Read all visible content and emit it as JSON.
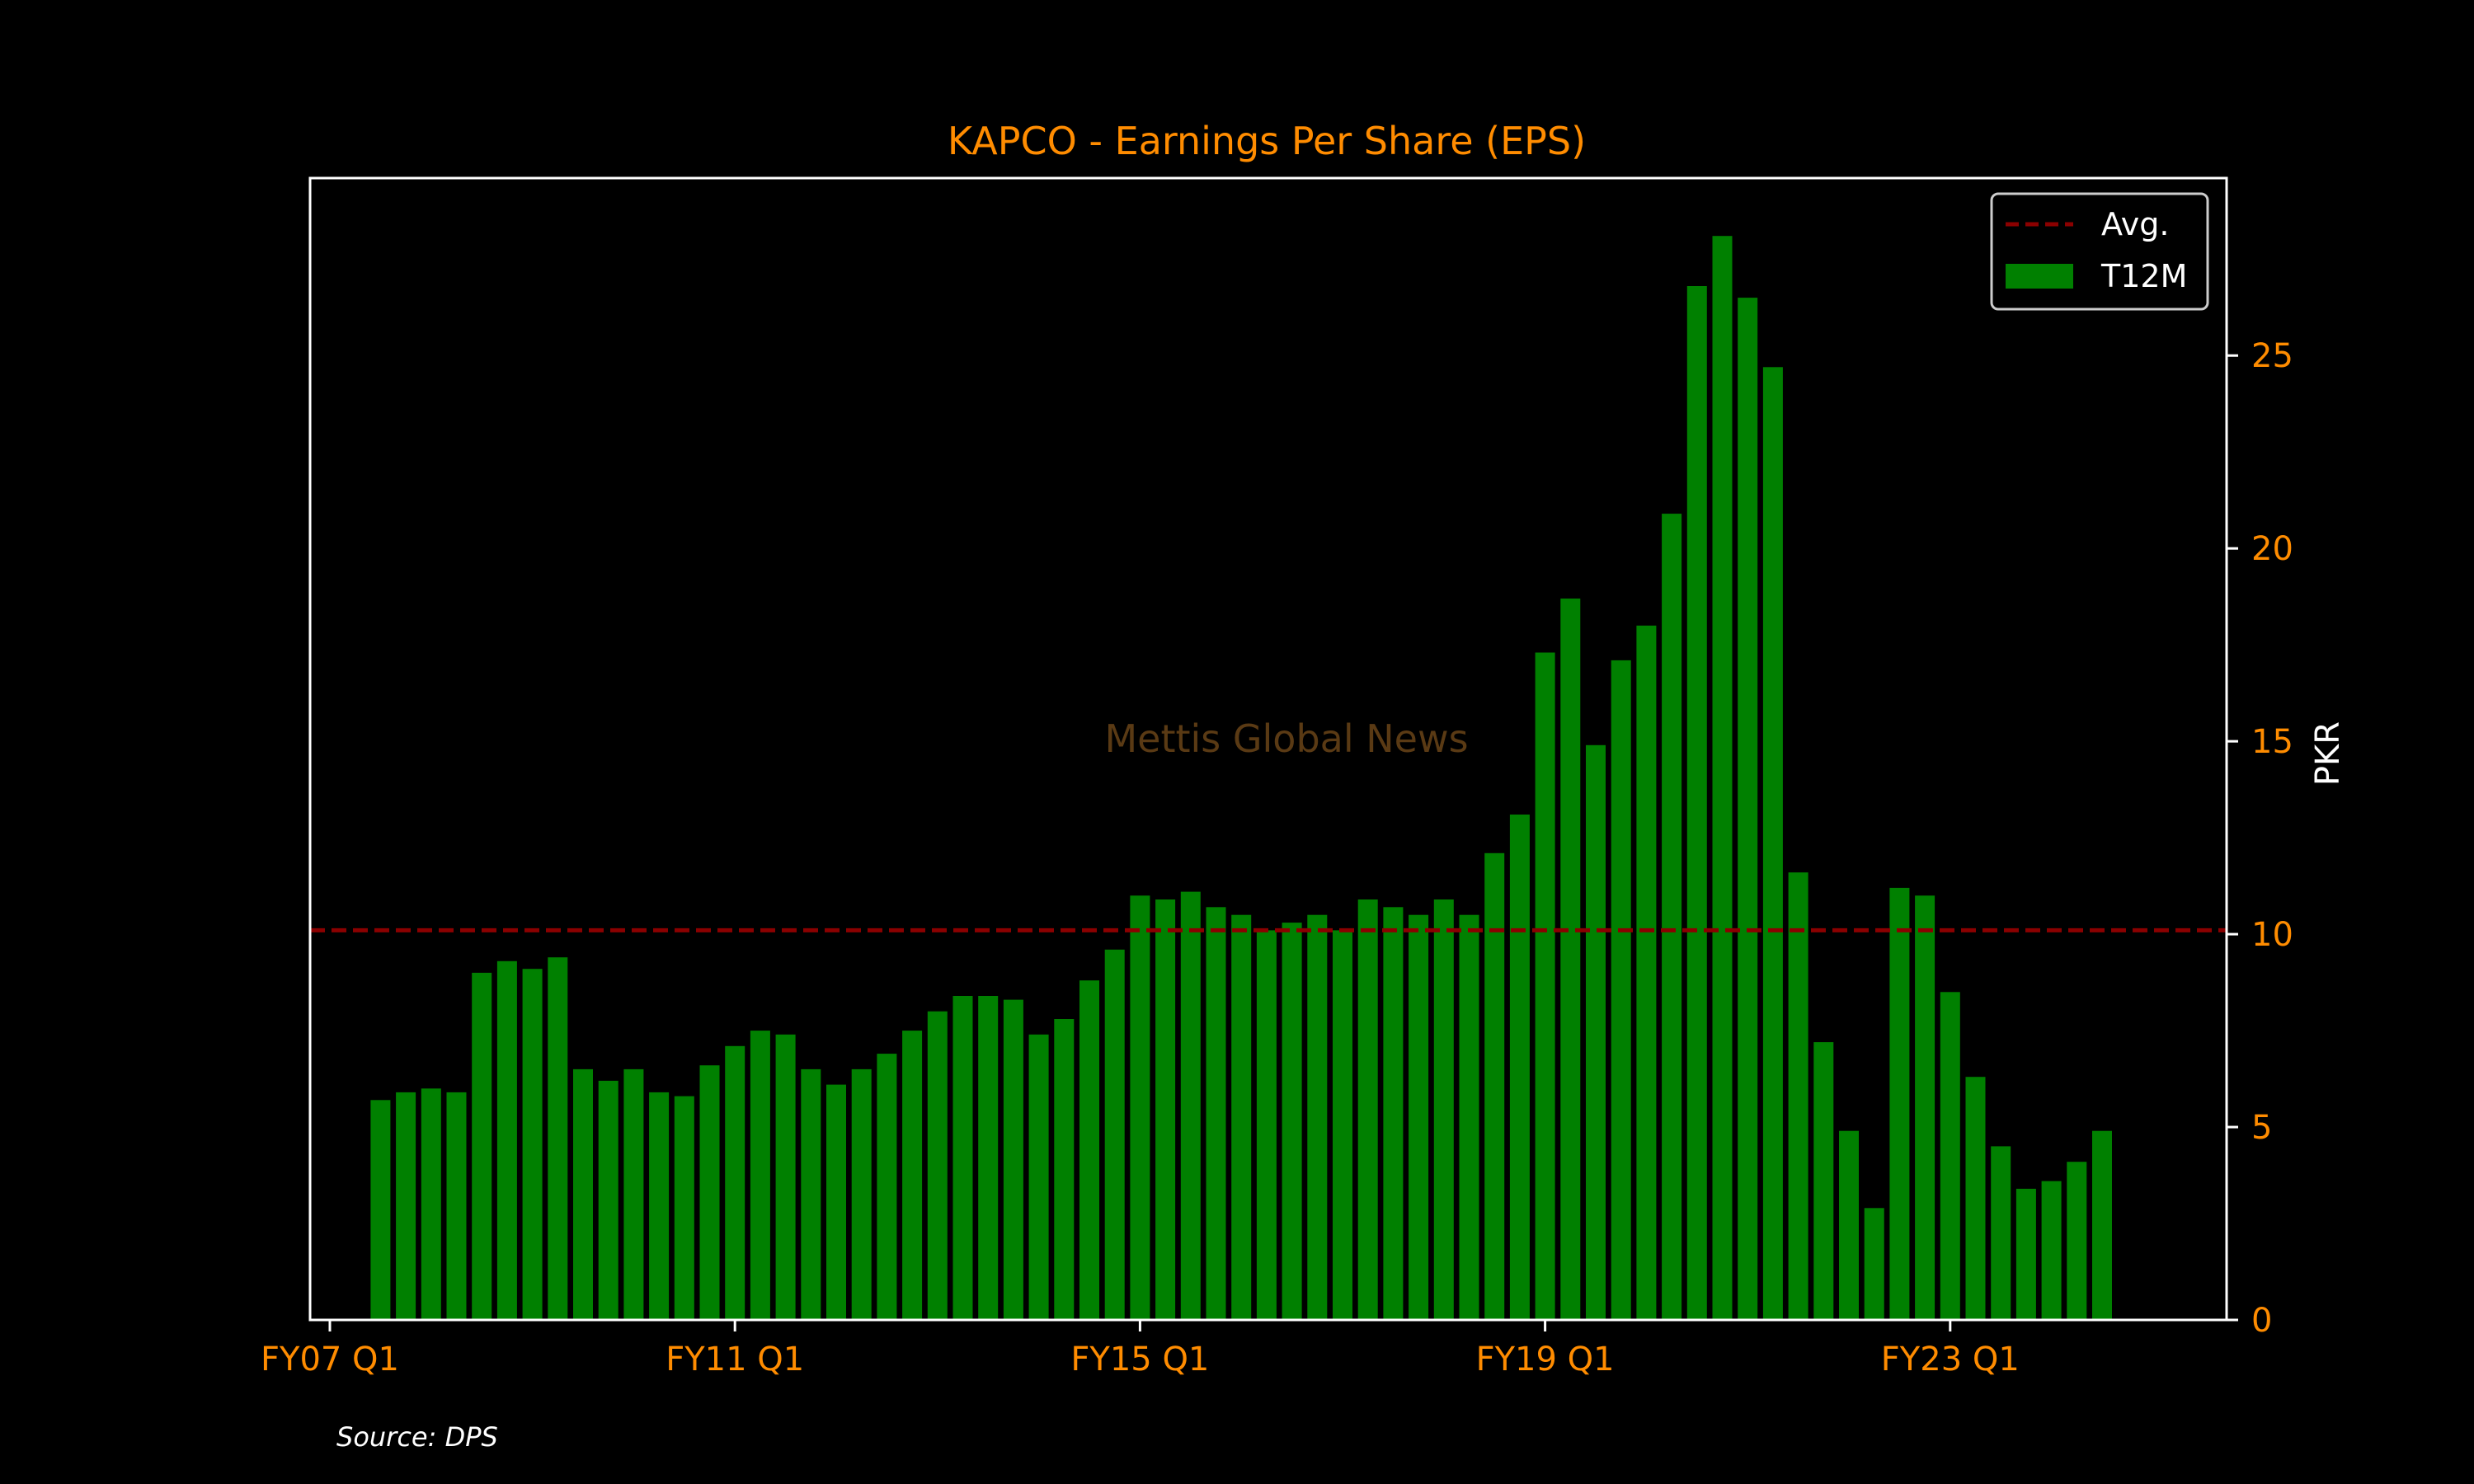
{
  "chart_data": {
    "type": "bar",
    "title": "KAPCO - Earnings Per Share (EPS)",
    "xlabel": "",
    "ylabel": "PKR",
    "x_tick_labels": [
      "FY07 Q1",
      "FY11 Q1",
      "FY15 Q1",
      "FY19 Q1",
      "FY23 Q1"
    ],
    "y_ticks": [
      0,
      5,
      10,
      15,
      20,
      25
    ],
    "ylim": [
      0,
      29.6
    ],
    "y_axis_side": "right",
    "grid": false,
    "legend_position": "top-right",
    "watermark": "Mettis Global News",
    "categories": [
      "FY07 Q1",
      "FY07 Q2",
      "FY07 Q3",
      "FY07 Q4",
      "FY08 Q1",
      "FY08 Q2",
      "FY08 Q3",
      "FY08 Q4",
      "FY09 Q1",
      "FY09 Q2",
      "FY09 Q3",
      "FY09 Q4",
      "FY10 Q1",
      "FY10 Q2",
      "FY10 Q3",
      "FY10 Q4",
      "FY11 Q1",
      "FY11 Q2",
      "FY11 Q3",
      "FY11 Q4",
      "FY12 Q1",
      "FY12 Q2",
      "FY12 Q3",
      "FY12 Q4",
      "FY13 Q1",
      "FY13 Q2",
      "FY13 Q3",
      "FY13 Q4",
      "FY14 Q1",
      "FY14 Q2",
      "FY14 Q3",
      "FY14 Q4",
      "FY15 Q1",
      "FY15 Q2",
      "FY15 Q3",
      "FY15 Q4",
      "FY16 Q1",
      "FY16 Q2",
      "FY16 Q3",
      "FY16 Q4",
      "FY17 Q1",
      "FY17 Q2",
      "FY17 Q3",
      "FY17 Q4",
      "FY18 Q1",
      "FY18 Q2",
      "FY18 Q3",
      "FY18 Q4",
      "FY19 Q1",
      "FY19 Q2",
      "FY19 Q3",
      "FY19 Q4",
      "FY20 Q1",
      "FY20 Q2",
      "FY20 Q3",
      "FY20 Q4",
      "FY21 Q1",
      "FY21 Q2",
      "FY21 Q3",
      "FY21 Q4",
      "FY22 Q1",
      "FY22 Q2",
      "FY22 Q3",
      "FY22 Q4",
      "FY23 Q1",
      "FY23 Q2",
      "FY23 Q3",
      "FY23 Q4",
      "FY24 Q1",
      "FY24 Q2",
      "FY24 Q3",
      "FY24 Q4"
    ],
    "series": [
      {
        "name": "T12M",
        "color": "#008000",
        "values": [
          null,
          null,
          5.7,
          5.9,
          6.0,
          5.9,
          9.0,
          9.3,
          9.1,
          9.4,
          6.5,
          6.2,
          6.5,
          5.9,
          5.8,
          6.6,
          7.1,
          7.5,
          7.4,
          6.5,
          6.1,
          6.5,
          6.9,
          7.5,
          8.0,
          8.4,
          8.4,
          8.3,
          7.4,
          7.8,
          8.8,
          9.6,
          11.0,
          10.9,
          11.1,
          10.7,
          10.5,
          10.1,
          10.3,
          10.5,
          10.1,
          10.9,
          10.7,
          10.5,
          10.9,
          10.5,
          12.1,
          13.1,
          17.3,
          18.7,
          14.9,
          17.1,
          18.0,
          20.9,
          26.8,
          28.1,
          26.5,
          24.7,
          11.6,
          7.2,
          4.9,
          2.9,
          11.2,
          11.0,
          8.5,
          6.3,
          4.5,
          3.4,
          3.6,
          4.1,
          4.9,
          null
        ]
      },
      {
        "name": "Avg.",
        "type": "line",
        "style": "dashed",
        "color": "#8b0000",
        "value": 10.1
      }
    ],
    "source_note": "Source: DPS"
  },
  "colors": {
    "background": "#000000",
    "accent_text": "#ff8c00",
    "axis": "#ffffff",
    "bar": "#008000",
    "avg_line": "#8b0000",
    "watermark": "#5a3a14"
  }
}
